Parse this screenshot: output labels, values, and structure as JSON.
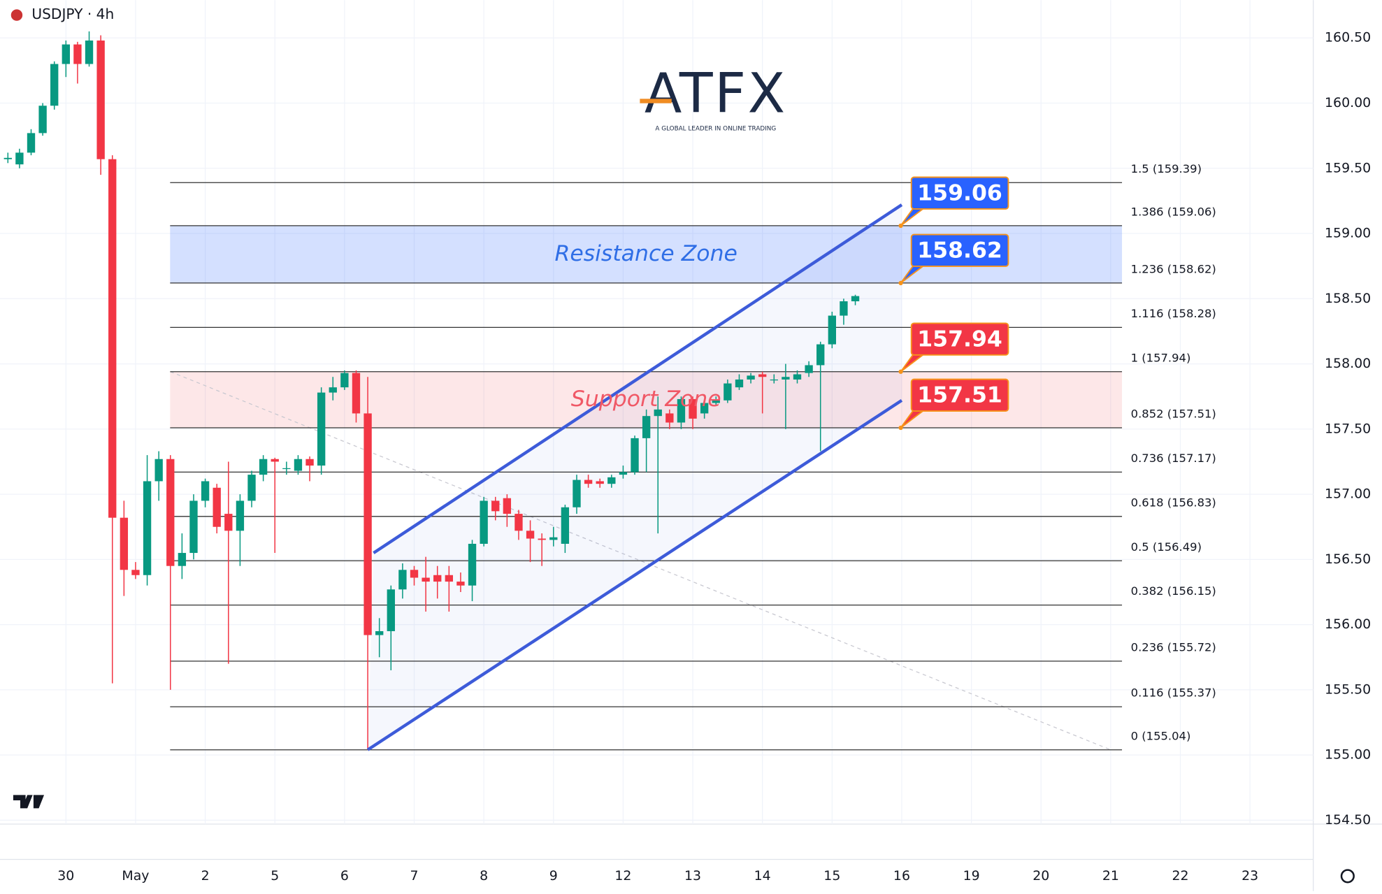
{
  "chart_data": {
    "type": "candlestick",
    "title": "USDJPY · 4h",
    "logo": {
      "text": "ATFX",
      "tagline": "A GLOBAL LEADER IN ONLINE TRADING"
    },
    "series": [
      {
        "name": "USDJPY",
        "up_color": "#089981",
        "down_color": "#f23645",
        "open": [
          159.57,
          159.53,
          159.62,
          159.77,
          159.98,
          160.3,
          160.45,
          160.3,
          160.48,
          159.57,
          156.82,
          156.42,
          156.38,
          157.1,
          157.27,
          156.45,
          156.55,
          156.95,
          157.05,
          156.85,
          156.72,
          156.95,
          157.15,
          157.27,
          157.2,
          157.18,
          157.27,
          157.22,
          157.78,
          157.82,
          157.93,
          157.62,
          155.92,
          155.95,
          156.27,
          156.42,
          156.36,
          156.38,
          156.38,
          156.33,
          156.3,
          156.62,
          156.95,
          156.97,
          156.85,
          156.72,
          156.66,
          156.65,
          156.62,
          156.9,
          157.11,
          157.1,
          157.08,
          157.15,
          157.17,
          157.43,
          157.6,
          157.62,
          157.55,
          157.73,
          157.62,
          157.7,
          157.72,
          157.82,
          157.88,
          157.92,
          157.88,
          157.88,
          157.88,
          157.93,
          157.99,
          158.15,
          158.37,
          158.48
        ],
        "high": [
          159.62,
          159.65,
          159.8,
          160.0,
          160.32,
          160.48,
          160.47,
          160.55,
          160.52,
          159.6,
          156.95,
          156.48,
          157.3,
          157.33,
          157.3,
          156.7,
          157.0,
          157.12,
          157.08,
          157.25,
          157.0,
          157.18,
          157.3,
          157.28,
          157.25,
          157.3,
          157.29,
          157.82,
          157.9,
          157.95,
          157.95,
          157.9,
          156.05,
          156.3,
          156.47,
          156.45,
          156.52,
          156.45,
          156.45,
          156.4,
          156.65,
          156.98,
          156.98,
          157.0,
          156.88,
          156.8,
          156.7,
          156.75,
          156.92,
          157.15,
          157.15,
          157.12,
          157.15,
          157.22,
          157.45,
          157.65,
          157.75,
          157.65,
          157.75,
          157.75,
          157.72,
          157.75,
          157.88,
          157.92,
          157.93,
          157.94,
          157.92,
          158.0,
          157.95,
          158.02,
          158.17,
          158.4,
          158.5,
          158.53
        ],
        "low": [
          159.54,
          159.5,
          159.6,
          159.75,
          159.95,
          160.2,
          160.15,
          160.28,
          159.45,
          155.55,
          156.22,
          156.35,
          156.3,
          156.95,
          155.5,
          156.35,
          156.5,
          156.9,
          156.7,
          155.7,
          156.45,
          156.9,
          157.1,
          156.55,
          157.15,
          157.15,
          157.1,
          157.15,
          157.72,
          157.8,
          157.55,
          155.04,
          155.75,
          155.65,
          156.2,
          156.3,
          156.1,
          156.2,
          156.1,
          156.25,
          156.18,
          156.6,
          156.8,
          156.75,
          156.65,
          156.48,
          156.45,
          156.6,
          156.55,
          156.85,
          157.05,
          157.05,
          157.05,
          157.12,
          157.15,
          157.17,
          156.7,
          157.5,
          157.5,
          157.5,
          157.58,
          157.68,
          157.7,
          157.8,
          157.85,
          157.62,
          157.85,
          157.5,
          157.85,
          157.9,
          157.33,
          158.12,
          158.3,
          158.45
        ],
        "close": [
          159.58,
          159.62,
          159.77,
          159.98,
          160.3,
          160.45,
          160.3,
          160.48,
          159.57,
          156.82,
          156.42,
          156.38,
          157.1,
          157.27,
          156.45,
          156.55,
          156.95,
          157.1,
          156.75,
          156.72,
          156.95,
          157.15,
          157.27,
          157.25,
          157.2,
          157.27,
          157.22,
          157.78,
          157.82,
          157.93,
          157.62,
          155.92,
          155.95,
          156.27,
          156.42,
          156.36,
          156.33,
          156.33,
          156.33,
          156.3,
          156.62,
          156.95,
          156.87,
          156.85,
          156.72,
          156.66,
          156.65,
          156.67,
          156.9,
          157.11,
          157.08,
          157.08,
          157.13,
          157.17,
          157.43,
          157.6,
          157.65,
          157.55,
          157.73,
          157.58,
          157.7,
          157.72,
          157.85,
          157.88,
          157.91,
          157.9,
          157.88,
          157.9,
          157.92,
          157.99,
          158.15,
          158.37,
          158.48,
          158.52
        ]
      }
    ],
    "xlim": [
      -0.68,
      112.45
    ],
    "xticks": [
      {
        "value": 5,
        "label": "30"
      },
      {
        "value": 11,
        "label": "May"
      },
      {
        "value": 17,
        "label": "2"
      },
      {
        "value": 23,
        "label": "5"
      },
      {
        "value": 29,
        "label": "6"
      },
      {
        "value": 35,
        "label": "7"
      },
      {
        "value": 41,
        "label": "8"
      },
      {
        "value": 47,
        "label": "9"
      },
      {
        "value": 53,
        "label": "12"
      },
      {
        "value": 59,
        "label": "13"
      },
      {
        "value": 65,
        "label": "14"
      },
      {
        "value": 71,
        "label": "15"
      },
      {
        "value": 77,
        "label": "16"
      },
      {
        "value": 83,
        "label": "19"
      },
      {
        "value": 89,
        "label": "20"
      },
      {
        "value": 95,
        "label": "21"
      },
      {
        "value": 101,
        "label": "22"
      },
      {
        "value": 107,
        "label": "23"
      }
    ],
    "ylim": [
      154.47,
      160.79
    ],
    "yticks": [
      {
        "value": 154.5,
        "label": "154.50"
      },
      {
        "value": 155,
        "label": "155.00"
      },
      {
        "value": 155.5,
        "label": "155.50"
      },
      {
        "value": 156,
        "label": "156.00"
      },
      {
        "value": 156.5,
        "label": "156.50"
      },
      {
        "value": 157,
        "label": "157.00"
      },
      {
        "value": 157.5,
        "label": "157.50"
      },
      {
        "value": 158,
        "label": "158.00"
      },
      {
        "value": 158.5,
        "label": "158.50"
      },
      {
        "value": 159,
        "label": "159.00"
      },
      {
        "value": 159.5,
        "label": "159.50"
      },
      {
        "value": 160,
        "label": "160.00"
      },
      {
        "value": 160.5,
        "label": "160.50"
      }
    ],
    "fib_levels": [
      {
        "value": 159.39,
        "label": "1.5 (159.39)"
      },
      {
        "value": 159.06,
        "label": "1.386 (159.06)"
      },
      {
        "value": 158.62,
        "label": "1.236 (158.62)"
      },
      {
        "value": 158.28,
        "label": "1.116 (158.28)"
      },
      {
        "value": 157.94,
        "label": "1 (157.94)"
      },
      {
        "value": 157.51,
        "label": "0.852 (157.51)"
      },
      {
        "value": 157.17,
        "label": "0.736 (157.17)"
      },
      {
        "value": 156.83,
        "label": "0.618 (156.83)"
      },
      {
        "value": 156.49,
        "label": "0.5 (156.49)"
      },
      {
        "value": 156.15,
        "label": "0.382 (156.15)"
      },
      {
        "value": 155.72,
        "label": "0.236 (155.72)"
      },
      {
        "value": 155.37,
        "label": "0.116 (155.37)"
      },
      {
        "value": 155.04,
        "label": "0 (155.04)"
      }
    ],
    "zones": [
      {
        "label": "Resistance Zone",
        "range": [
          158.62,
          159.06
        ],
        "color": "#2962ff",
        "text_color": "#2f6ee6"
      },
      {
        "label": "Support Zone",
        "range": [
          157.51,
          157.94
        ],
        "color": "#f23645",
        "text_color": "#f05866"
      }
    ],
    "callouts": [
      {
        "value": 159.06,
        "color": "#2962ff"
      },
      {
        "value": 158.62,
        "color": "#2962ff"
      },
      {
        "value": 157.94,
        "color": "#f23645"
      },
      {
        "value": 157.51,
        "color": "#f23645"
      }
    ],
    "channel": {
      "color": "#3d5bd9",
      "upper": {
        "x": [
          31.5,
          77
        ],
        "y": [
          156.55,
          159.22
        ]
      },
      "lower": {
        "x": [
          31,
          77
        ],
        "y": [
          155.04,
          157.72
        ]
      }
    },
    "trendline": {
      "x": [
        14,
        95
      ],
      "y": [
        157.94,
        155.04
      ]
    }
  }
}
